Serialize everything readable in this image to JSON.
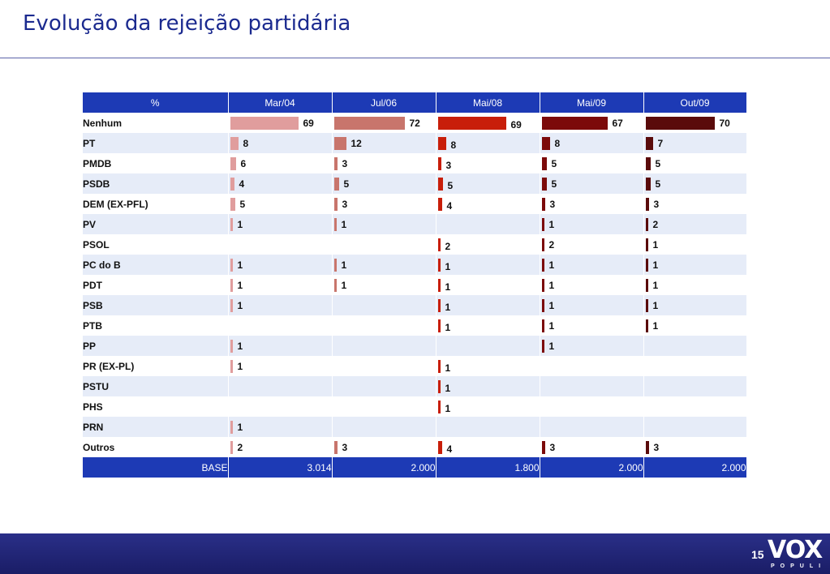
{
  "title": "Evolução da rejeição partidária",
  "page_number": "15",
  "logo": {
    "word": "VOX",
    "subtitle": "POPULI"
  },
  "chart_data": {
    "type": "bar",
    "header_label": "%",
    "periods": [
      "Mar/04",
      "Jul/06",
      "Mai/08",
      "Mai/09",
      "Out/09"
    ],
    "series_colors": [
      "#e09d9d",
      "#c8756c",
      "#c81e0a",
      "#7c0a0a",
      "#5a0b0b"
    ],
    "max_value": 70,
    "categories": [
      "Nenhum",
      "PT",
      "PMDB",
      "PSDB",
      "DEM (EX-PFL)",
      "PV",
      "PSOL",
      "PC do B",
      "PDT",
      "PSB",
      "PTB",
      "PP",
      "PR (EX-PL)",
      "PSTU",
      "PHS",
      "PRN",
      "Outros"
    ],
    "series": [
      {
        "values": [
          69,
          8,
          6,
          4,
          5,
          1,
          null,
          1,
          1,
          1,
          null,
          1,
          1,
          null,
          null,
          1,
          2
        ]
      },
      {
        "values": [
          72,
          12,
          3,
          5,
          3,
          1,
          null,
          1,
          1,
          null,
          null,
          null,
          null,
          null,
          null,
          null,
          3
        ]
      },
      {
        "values": [
          69,
          8,
          3,
          5,
          4,
          null,
          2,
          1,
          1,
          1,
          1,
          null,
          1,
          1,
          1,
          null,
          4
        ]
      },
      {
        "values": [
          67,
          8,
          5,
          5,
          3,
          1,
          2,
          1,
          1,
          1,
          1,
          1,
          null,
          null,
          null,
          null,
          3
        ]
      },
      {
        "values": [
          70,
          7,
          5,
          5,
          3,
          2,
          1,
          1,
          1,
          1,
          1,
          null,
          null,
          null,
          null,
          null,
          3
        ]
      }
    ],
    "base_label": "BASE",
    "base_values": [
      "3.014",
      "2.000",
      "1.800",
      "2.000",
      "2.000"
    ]
  }
}
